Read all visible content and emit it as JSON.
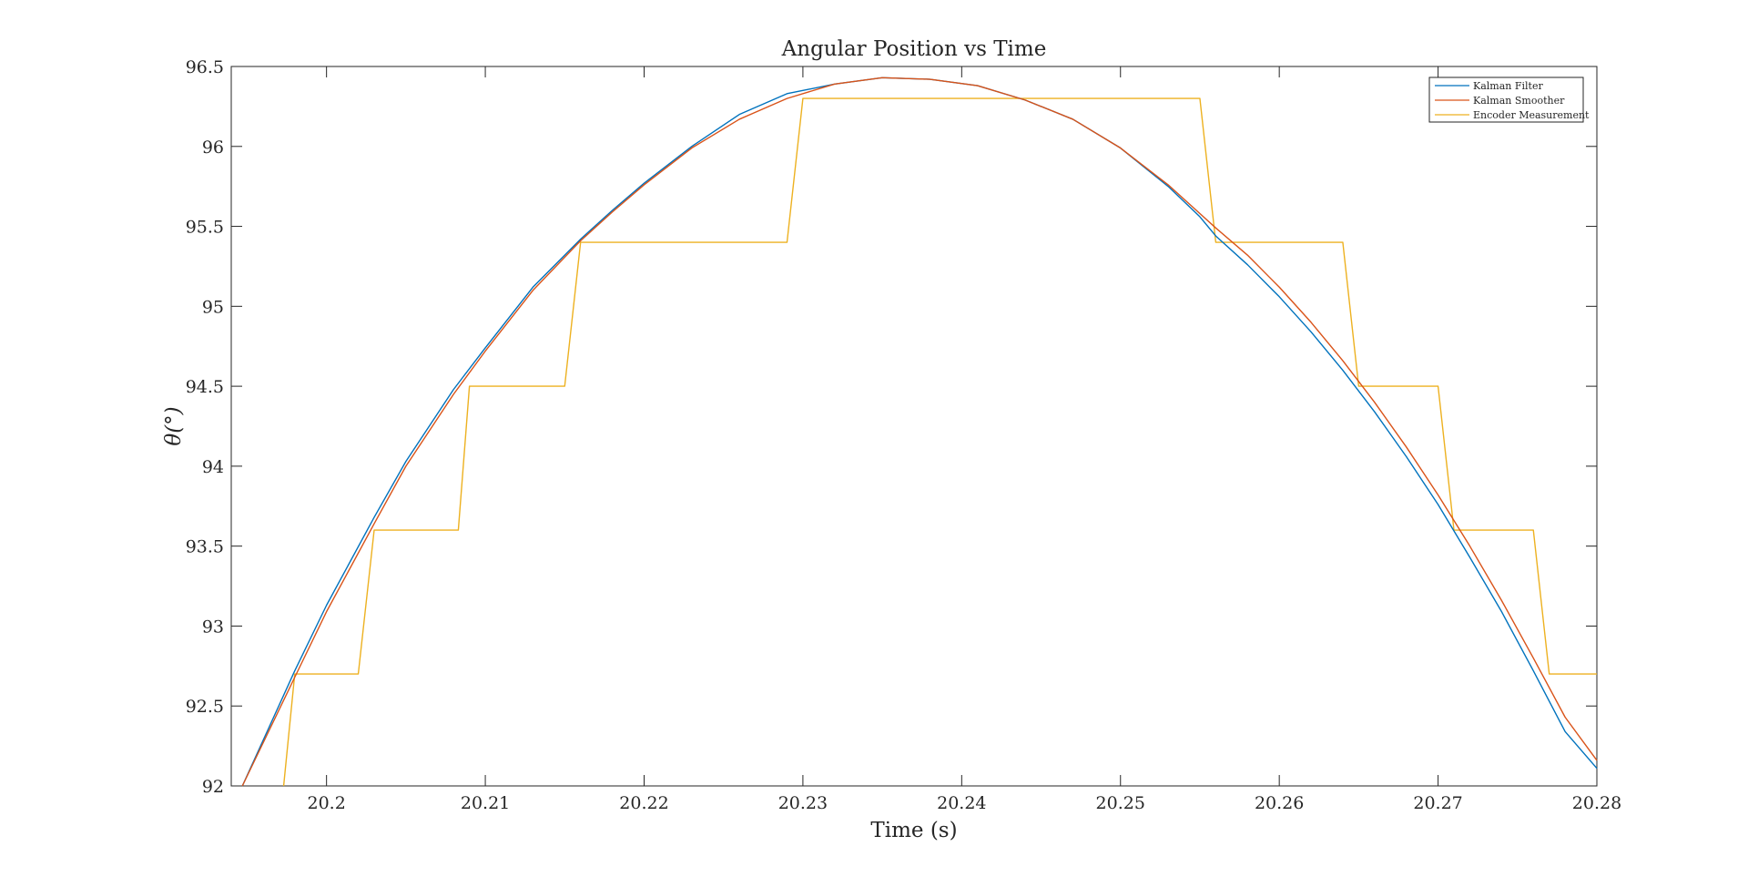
{
  "chart_data": {
    "type": "line",
    "title": "Angular Position vs Time",
    "xlabel": "Time (s)",
    "ylabel": "θ(°)",
    "xlim": [
      20.194,
      20.28
    ],
    "ylim": [
      92,
      96.5
    ],
    "xticks": [
      20.2,
      20.21,
      20.22,
      20.23,
      20.24,
      20.25,
      20.26,
      20.27,
      20.28
    ],
    "xtick_labels": [
      "20.2",
      "20.21",
      "20.22",
      "20.23",
      "20.24",
      "20.25",
      "20.26",
      "20.27",
      "20.28"
    ],
    "yticks": [
      92,
      92.5,
      93,
      93.5,
      94,
      94.5,
      95,
      95.5,
      96,
      96.5
    ],
    "ytick_labels": [
      "92",
      "92.5",
      "93",
      "93.5",
      "94",
      "94.5",
      "95",
      "95.5",
      "96",
      "96.5"
    ],
    "grid": false,
    "legend_position": "top-right",
    "series": [
      {
        "name": "Kalman Filter",
        "color": "#0072BD",
        "x": [
          20.1947,
          20.198,
          20.2,
          20.203,
          20.205,
          20.208,
          20.21,
          20.213,
          20.216,
          20.218,
          20.22,
          20.223,
          20.226,
          20.229,
          20.23,
          20.232,
          20.235,
          20.238,
          20.241,
          20.244,
          20.247,
          20.25,
          20.253,
          20.255,
          20.256,
          20.258,
          20.26,
          20.262,
          20.264,
          20.266,
          20.268,
          20.27,
          20.272,
          20.274,
          20.276,
          20.278,
          20.28
        ],
        "y": [
          92.0,
          92.72,
          93.13,
          93.68,
          94.03,
          94.48,
          94.74,
          95.12,
          95.42,
          95.6,
          95.77,
          96.0,
          96.2,
          96.33,
          96.35,
          96.39,
          96.43,
          96.42,
          96.38,
          96.29,
          96.17,
          95.99,
          95.75,
          95.56,
          95.44,
          95.26,
          95.06,
          94.84,
          94.6,
          94.34,
          94.06,
          93.76,
          93.43,
          93.09,
          92.72,
          92.34,
          92.11
        ]
      },
      {
        "name": "Kalman Smoother",
        "color": "#D95319",
        "x": [
          20.1947,
          20.198,
          20.2,
          20.203,
          20.205,
          20.208,
          20.21,
          20.213,
          20.216,
          20.218,
          20.22,
          20.223,
          20.226,
          20.229,
          20.232,
          20.235,
          20.238,
          20.241,
          20.244,
          20.247,
          20.25,
          20.253,
          20.255,
          20.256,
          20.258,
          20.26,
          20.262,
          20.264,
          20.266,
          20.268,
          20.27,
          20.272,
          20.274,
          20.276,
          20.278,
          20.28
        ],
        "y": [
          92.0,
          92.68,
          93.09,
          93.64,
          94.0,
          94.45,
          94.72,
          95.1,
          95.41,
          95.59,
          95.76,
          95.99,
          96.17,
          96.3,
          96.39,
          96.43,
          96.42,
          96.38,
          96.29,
          96.17,
          95.99,
          95.76,
          95.58,
          95.49,
          95.32,
          95.12,
          94.9,
          94.66,
          94.4,
          94.12,
          93.82,
          93.5,
          93.16,
          92.8,
          92.43,
          92.16
        ]
      },
      {
        "name": "Encoder Measurement",
        "color": "#EDB120",
        "x": [
          20.1973,
          20.198,
          20.202,
          20.203,
          20.2083,
          20.209,
          20.215,
          20.216,
          20.229,
          20.23,
          20.255,
          20.256,
          20.264,
          20.265,
          20.27,
          20.271,
          20.276,
          20.277,
          20.28
        ],
        "y": [
          92.0,
          92.7,
          92.7,
          93.6,
          93.6,
          94.5,
          94.5,
          95.4,
          95.4,
          96.3,
          96.3,
          95.4,
          95.4,
          94.5,
          94.5,
          93.6,
          93.6,
          92.7,
          92.7
        ]
      }
    ]
  }
}
